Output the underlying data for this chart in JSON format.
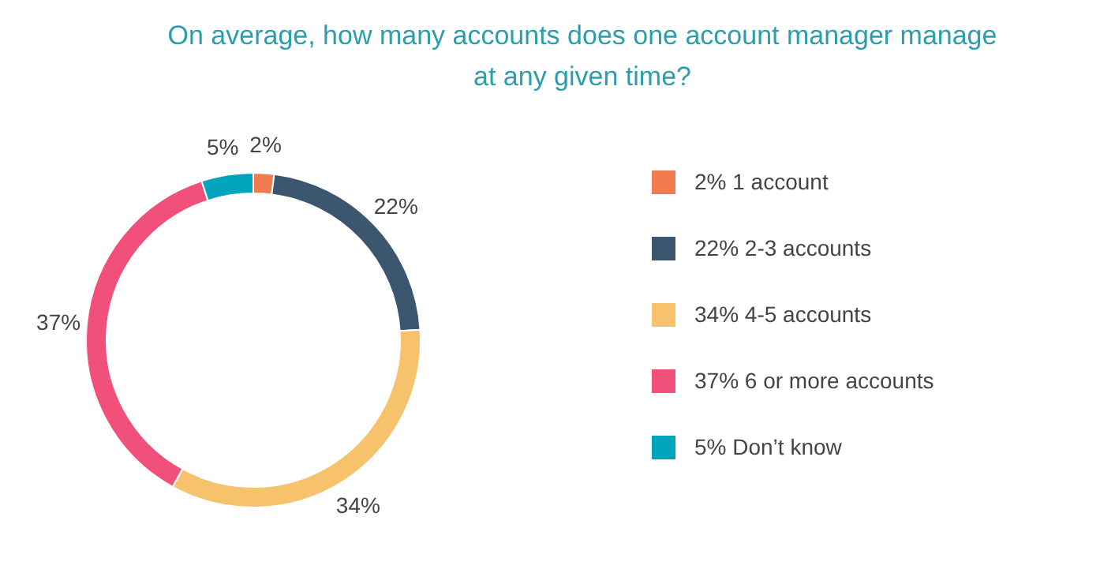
{
  "chart_data": {
    "type": "donut",
    "title": "On average, how many accounts does one account manager manage at any given time?",
    "categories": [
      "2% 1 account",
      "22% 2-3 accounts",
      "34% 4-5 accounts",
      "37% 6 or more accounts",
      "5% Don’t know"
    ],
    "values": [
      2,
      22,
      34,
      37,
      5
    ],
    "colors": [
      "#f07b4e",
      "#3d5670",
      "#f6c26b",
      "#f0507a",
      "#00a4bd"
    ],
    "value_labels": [
      "2%",
      "22%",
      "34%",
      "37%",
      "5%"
    ],
    "legend": "right"
  }
}
